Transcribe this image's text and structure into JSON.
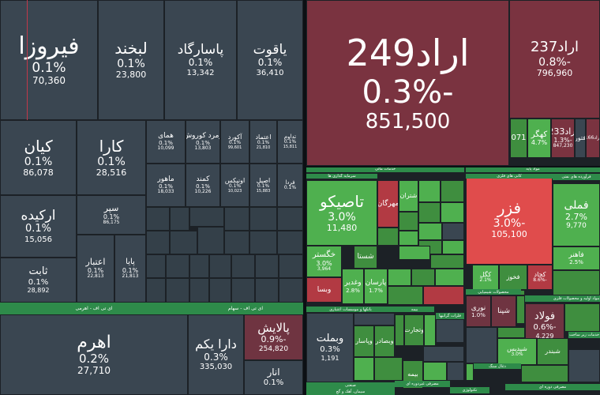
{
  "colors": {
    "neutral": "#3a4651",
    "neutral_dark": "#344049",
    "green": "#4fb04f",
    "green_light": "#67c667",
    "green_dark": "#3f8e3f",
    "red_dark": "#7a3340",
    "red": "#e04c4c",
    "red_mid": "#b23a43",
    "maroon": "#6f3441",
    "sector_bar": "#2e8b4a"
  },
  "tiles": [
    {
      "name": "فیروزا",
      "pct": "0.1%",
      "val": "70,360",
      "color": "neutral",
      "fs": [
        30,
        17,
        12
      ]
    },
    {
      "name": "لبخند",
      "pct": "0.1%",
      "val": "23,800",
      "color": "neutral",
      "fs": [
        20,
        14,
        11
      ]
    },
    {
      "name": "پاسارگاد",
      "pct": "0.1%",
      "val": "13,342",
      "color": "neutral",
      "fs": [
        17,
        12,
        10
      ]
    },
    {
      "name": "یاقوت",
      "pct": "0.1%",
      "val": "36,410",
      "color": "neutral",
      "fs": [
        17,
        12,
        10
      ]
    },
    {
      "name": "اراد249",
      "pct": "-0.3%",
      "val": "851,500",
      "color": "red_dark",
      "fs": [
        46,
        40,
        26
      ]
    },
    {
      "name": "اراد237",
      "pct": "-0.8%",
      "val": "796,960",
      "color": "red_dark",
      "fs": [
        18,
        14,
        11
      ]
    },
    {
      "name": "کیان",
      "pct": "0.1%",
      "val": "86,078",
      "color": "neutral",
      "fs": [
        20,
        14,
        11
      ]
    },
    {
      "name": "کارا",
      "pct": "0.1%",
      "val": "28,516",
      "color": "neutral",
      "fs": [
        20,
        14,
        11
      ]
    },
    {
      "name": "همای",
      "pct": "0.1%",
      "val": "10,099",
      "color": "neutral",
      "fs": [
        9,
        7,
        6
      ]
    },
    {
      "name": "زمرد کوروش",
      "pct": "0.1%",
      "val": "13,803",
      "color": "neutral",
      "fs": [
        9,
        7,
        6
      ]
    },
    {
      "name": "آکورد",
      "pct": "0.1%",
      "val": "99,601",
      "color": "neutral",
      "fs": [
        8,
        6,
        5
      ]
    },
    {
      "name": "اعتماد",
      "pct": "0.1%",
      "val": "21,810",
      "color": "neutral",
      "fs": [
        8,
        6,
        5
      ]
    },
    {
      "name": "تداوم",
      "pct": "0.1%",
      "val": "15,811",
      "color": "neutral",
      "fs": [
        7,
        6,
        5
      ]
    },
    {
      "name": "ماهور",
      "pct": "0.1%",
      "val": "18,033",
      "color": "neutral",
      "fs": [
        9,
        7,
        6
      ]
    },
    {
      "name": "کمند",
      "pct": "0.1%",
      "val": "10,226",
      "color": "neutral",
      "fs": [
        9,
        7,
        6
      ]
    },
    {
      "name": "اونیکس",
      "pct": "0.1%",
      "val": "10,023",
      "color": "neutral",
      "fs": [
        8,
        6,
        5
      ]
    },
    {
      "name": "اصیل",
      "pct": "0.1%",
      "val": "15,883",
      "color": "neutral",
      "fs": [
        8,
        6,
        5
      ]
    },
    {
      "name": "فردا",
      "pct": "0.1%",
      "val": "",
      "color": "neutral",
      "fs": [
        7,
        6,
        5
      ]
    },
    {
      "name": "ارکیده",
      "pct": "0.1%",
      "val": "15,056",
      "color": "neutral",
      "fs": [
        17,
        13,
        10
      ]
    },
    {
      "name": "سپر",
      "pct": "0.1%",
      "val": "86,175",
      "color": "neutral",
      "fs": [
        11,
        8,
        6
      ]
    },
    {
      "name": "ثابت",
      "pct": "0.1%",
      "val": "28,892",
      "color": "neutral",
      "fs": [
        13,
        10,
        8
      ]
    },
    {
      "name": "اعتبار",
      "pct": "0.1%",
      "val": "22,813",
      "color": "neutral",
      "fs": [
        11,
        8,
        6
      ]
    },
    {
      "name": "پایا",
      "pct": "0.1%",
      "val": "21,813",
      "color": "neutral",
      "fs": [
        10,
        8,
        6
      ]
    },
    {
      "name": "اهرم",
      "pct": "0.2%",
      "val": "27,710",
      "color": "neutral",
      "fs": [
        22,
        15,
        12
      ]
    },
    {
      "name": "دارا یکم",
      "pct": "0.3%",
      "val": "335,030",
      "color": "neutral",
      "fs": [
        16,
        12,
        10
      ]
    },
    {
      "name": "پالایش",
      "pct": "-0.9%",
      "val": "254,820",
      "color": "maroon",
      "fs": [
        15,
        11,
        9
      ]
    },
    {
      "name": "انار",
      "pct": "0.1%",
      "val": "",
      "color": "neutral",
      "fs": [
        12,
        10,
        8
      ]
    },
    {
      "name": "تاصیکو",
      "pct": "3.0%",
      "val": "11,480",
      "color": "green",
      "fs": [
        20,
        14,
        11
      ]
    },
    {
      "name": "فزر",
      "pct": "-3.0%",
      "val": "105,100",
      "color": "red",
      "fs": [
        20,
        14,
        11
      ]
    },
    {
      "name": "فملی",
      "pct": "2.7%",
      "val": "9,770",
      "color": "green",
      "fs": [
        14,
        11,
        9
      ]
    },
    {
      "name": "وبملت",
      "pct": "0.3%",
      "val": "1,191",
      "color": "neutral",
      "fs": [
        13,
        10,
        8
      ]
    },
    {
      "name": "فولاد",
      "pct": "-0.6%",
      "val": "4,229",
      "color": "maroon",
      "fs": [
        13,
        10,
        8
      ]
    },
    {
      "name": "اراد233",
      "pct": "-1.3%",
      "val": "847,230",
      "color": "red_dark",
      "fs": [
        11,
        8,
        6
      ]
    },
    {
      "name": "کهگر",
      "pct": "4.7%",
      "val": "",
      "color": "green",
      "fs": [
        10,
        8,
        6
      ]
    },
    {
      "name": "071",
      "pct": "",
      "val": "",
      "color": "green_dark",
      "fs": [
        10,
        8,
        6
      ]
    },
    {
      "name": "فتور",
      "pct": "",
      "val": "",
      "color": "neutral",
      "fs": [
        8,
        6,
        5
      ]
    },
    {
      "name": "اراد166",
      "pct": "",
      "val": "",
      "color": "red_dark",
      "fs": [
        6,
        5,
        5
      ]
    },
    {
      "name": "خگستر",
      "pct": "3.0%",
      "val": "3,964",
      "color": "green",
      "fs": [
        10,
        8,
        6
      ]
    },
    {
      "name": "وبسا",
      "pct": "",
      "val": "",
      "color": "red_mid",
      "fs": [
        9,
        7,
        6
      ]
    },
    {
      "name": "وغدیر",
      "pct": "2.8%",
      "val": "",
      "color": "green",
      "fs": [
        9,
        7,
        6
      ]
    },
    {
      "name": "پارسان",
      "pct": "1.7%",
      "val": "",
      "color": "green",
      "fs": [
        9,
        7,
        6
      ]
    },
    {
      "name": "شستا",
      "pct": "",
      "val": "",
      "color": "green_dark",
      "fs": [
        9,
        7,
        6
      ]
    },
    {
      "name": "مهرگان",
      "pct": "",
      "val": "",
      "color": "red_mid",
      "fs": [
        9,
        7,
        6
      ]
    },
    {
      "name": "شتران",
      "pct": "",
      "val": "",
      "color": "green",
      "fs": [
        8,
        6,
        5
      ]
    },
    {
      "name": "کگل",
      "pct": "2.1%",
      "val": "",
      "color": "green",
      "fs": [
        8,
        6,
        5
      ]
    },
    {
      "name": "کچاد",
      "pct": "-8.6%",
      "val": "",
      "color": "red_mid",
      "fs": [
        8,
        6,
        5
      ]
    },
    {
      "name": "فخوز",
      "pct": "",
      "val": "",
      "color": "green_dark",
      "fs": [
        8,
        6,
        5
      ]
    },
    {
      "name": "فاهنر",
      "pct": "2.5%",
      "val": "",
      "color": "green",
      "fs": [
        9,
        7,
        6
      ]
    },
    {
      "name": "نوری",
      "pct": "1.0%",
      "val": "",
      "color": "maroon",
      "fs": [
        9,
        7,
        6
      ]
    },
    {
      "name": "شپنا",
      "pct": "",
      "val": "",
      "color": "maroon",
      "fs": [
        9,
        7,
        6
      ]
    },
    {
      "name": "وپاسار",
      "pct": "",
      "val": "",
      "color": "green_dark",
      "fs": [
        8,
        6,
        5
      ]
    },
    {
      "name": "وتجارت",
      "pct": "",
      "val": "",
      "color": "green_dark",
      "fs": [
        8,
        6,
        5
      ]
    },
    {
      "name": "شپدیس",
      "pct": "3.0%",
      "val": "",
      "color": "green",
      "fs": [
        8,
        6,
        5
      ]
    },
    {
      "name": "شبندر",
      "pct": "",
      "val": "",
      "color": "green_dark",
      "fs": [
        8,
        6,
        5
      ]
    },
    {
      "name": "بیمه",
      "pct": "",
      "val": "",
      "color": "green_dark",
      "fs": [
        8,
        6,
        5
      ]
    },
    {
      "name": "وبصادر",
      "pct": "",
      "val": "",
      "color": "green_dark",
      "fs": [
        8,
        6,
        5
      ]
    }
  ],
  "sectors": [
    {
      "label": "خدمات مالی"
    },
    {
      "label": "سرمایه گذاری ها"
    },
    {
      "label": "مواد پایه"
    },
    {
      "label": "کانی های فلزی"
    },
    {
      "label": "فرآورده های نفتی"
    },
    {
      "label": "بانکها و موسسات اعتباری"
    },
    {
      "label": "بیمه"
    },
    {
      "label": "آهن و فولاد"
    },
    {
      "label": "محصولات شیمیایی"
    },
    {
      "label": "مواد اولیه و محصولات فلزی"
    },
    {
      "label": "ای تی اف - اهرمی"
    },
    {
      "label": "ای تی اف - سهام"
    },
    {
      "label": "صنعتی"
    },
    {
      "label": "مصرفی غیردوره ای"
    },
    {
      "label": "تکنولوژی"
    },
    {
      "label": "مصرفی دوره ای"
    },
    {
      "label": "خدمات زیر ساخت"
    },
    {
      "label": "فلزات گرانبها"
    },
    {
      "label": "ذغال سنگ"
    },
    {
      "label": "سیمان، آهک و گچ"
    }
  ]
}
